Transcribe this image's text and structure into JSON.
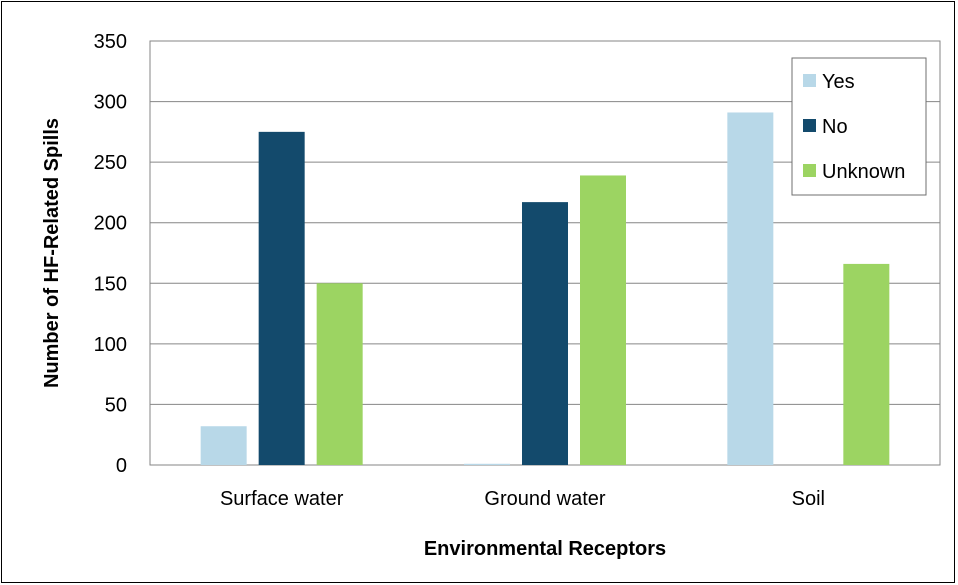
{
  "chart_data": {
    "type": "bar",
    "categories": [
      "Surface water",
      "Ground water",
      "Soil"
    ],
    "series": [
      {
        "name": "Yes",
        "values": [
          32,
          1,
          291
        ]
      },
      {
        "name": "No",
        "values": [
          275,
          217,
          0
        ]
      },
      {
        "name": "Unknown",
        "values": [
          150,
          239,
          166
        ]
      }
    ],
    "colors": [
      "#b8d8e8",
      "#134a6c",
      "#9cd462"
    ],
    "xlabel": "Environmental Receptors",
    "ylabel": "Number of HF-Related Spills",
    "ylim": [
      0,
      350
    ],
    "yticks": [
      0,
      50,
      100,
      150,
      200,
      250,
      300,
      350
    ],
    "grid": "horizontal",
    "legend_position": "top-right"
  }
}
